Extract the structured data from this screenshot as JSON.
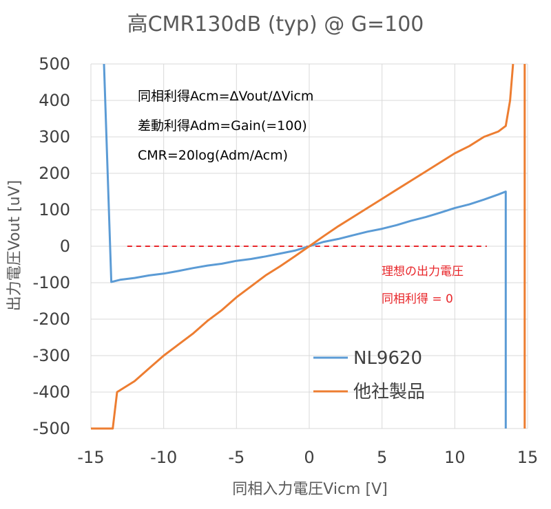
{
  "chart_data": {
    "type": "line",
    "title": "高CMR130dB (typ) @ G=100",
    "xlabel": "同相入力電圧Vicm [V]",
    "ylabel": "出力電圧Vout [uV]",
    "xlim": [
      -15,
      15
    ],
    "ylim": [
      -500,
      500
    ],
    "x_ticks": [
      "-15",
      "-10",
      "-5",
      "0",
      "5",
      "10",
      "15"
    ],
    "y_ticks": [
      "500",
      "400",
      "300",
      "200",
      "100",
      "0",
      "-100",
      "-200",
      "-300",
      "-400",
      "-500"
    ],
    "grid": true,
    "legend_position": "bottom-right",
    "annotations": [
      "同相利得Acm=ΔVout/ΔVicm",
      "差動利得Adm=Gain(=100)",
      "CMR=20log(Adm/Acm)"
    ],
    "ideal_label": [
      "理想の出力電圧",
      "同相利得 = 0"
    ],
    "ideal_line": {
      "x": [
        -12.5,
        12.2
      ],
      "y": [
        0,
        0
      ],
      "color": "#e8262a"
    },
    "series": [
      {
        "name": "NL9620",
        "color": "#5b9bd5",
        "x": [
          -14.1,
          -13.6,
          -13,
          -12,
          -11,
          -10,
          -9,
          -8,
          -7,
          -6,
          -5,
          -4,
          -3,
          -2,
          -1,
          0,
          1,
          2,
          3,
          4,
          5,
          6,
          7,
          8,
          9,
          10,
          11,
          12,
          13,
          13.5,
          13.5
        ],
        "y": [
          500,
          -98,
          -92,
          -87,
          -80,
          -75,
          -68,
          -60,
          -53,
          -48,
          -40,
          -35,
          -28,
          -20,
          -12,
          0,
          12,
          20,
          30,
          40,
          48,
          58,
          70,
          80,
          92,
          105,
          115,
          128,
          142,
          150,
          -500
        ]
      },
      {
        "name": "他社製品",
        "color": "#ed7d31",
        "x": [
          -15,
          -13.5,
          -13.2,
          -12,
          -11,
          -10,
          -9,
          -8,
          -7,
          -6,
          -5,
          -4,
          -3,
          -2,
          -1,
          0,
          1,
          2,
          3,
          4,
          5,
          6,
          7,
          8,
          9,
          10,
          11,
          12,
          13,
          13.5,
          13.8,
          14
        ],
        "y": [
          -500,
          -500,
          -400,
          -370,
          -335,
          -300,
          -270,
          -240,
          -205,
          -175,
          -140,
          -110,
          -80,
          -55,
          -28,
          0,
          28,
          55,
          80,
          105,
          130,
          155,
          180,
          205,
          230,
          255,
          275,
          300,
          315,
          330,
          400,
          500
        ]
      },
      {
        "name": "",
        "color": "#ed7d31",
        "x": [
          14.8,
          14.8
        ],
        "y": [
          500,
          -500
        ]
      }
    ]
  }
}
